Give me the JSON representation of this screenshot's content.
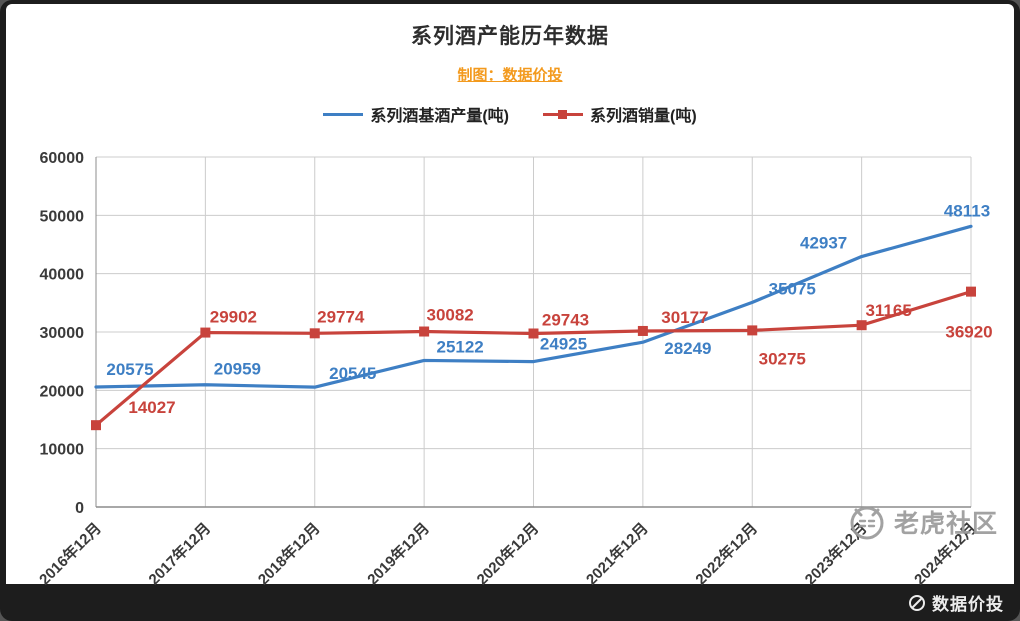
{
  "chart_data": {
    "type": "line",
    "title": "系列酒产能历年数据",
    "subtitle": "制图：数据价投",
    "categories": [
      "2016年12月",
      "2017年12月",
      "2018年12月",
      "2019年12月",
      "2020年12月",
      "2021年12月",
      "2022年12月",
      "2023年12月",
      "2024年12月"
    ],
    "series": [
      {
        "name": "系列酒基酒产量(吨)",
        "color": "#3E7FC4",
        "marker": "none",
        "values": [
          20575,
          20959,
          20545,
          25122,
          24925,
          28249,
          35075,
          42937,
          48113
        ],
        "label_offsets": [
          [
            34,
            -12
          ],
          [
            32,
            -10
          ],
          [
            38,
            -8
          ],
          [
            36,
            -8
          ],
          [
            30,
            -12
          ],
          [
            45,
            12
          ],
          [
            40,
            -8
          ],
          [
            -38,
            -8
          ],
          [
            -4,
            -10
          ]
        ]
      },
      {
        "name": "系列酒销量(吨)",
        "color": "#C8433C",
        "marker": "square",
        "values": [
          14027,
          29902,
          29774,
          30082,
          29743,
          30177,
          30275,
          31165,
          36920
        ],
        "label_offsets": [
          [
            56,
            -12
          ],
          [
            28,
            -10
          ],
          [
            26,
            -11
          ],
          [
            26,
            -11
          ],
          [
            32,
            -8
          ],
          [
            42,
            -8
          ],
          [
            30,
            34
          ],
          [
            27,
            -9
          ],
          [
            -2,
            46
          ]
        ]
      }
    ],
    "ylim": [
      0,
      60000
    ],
    "ytick_step": 10000,
    "grid": true,
    "legend_position": "top",
    "colors": {
      "grid": "#cccccc",
      "axis": "#8c8c8c",
      "text": "#3a3a3a"
    }
  },
  "watermarks": {
    "community": "老虎社区",
    "brand": "数据价投"
  }
}
